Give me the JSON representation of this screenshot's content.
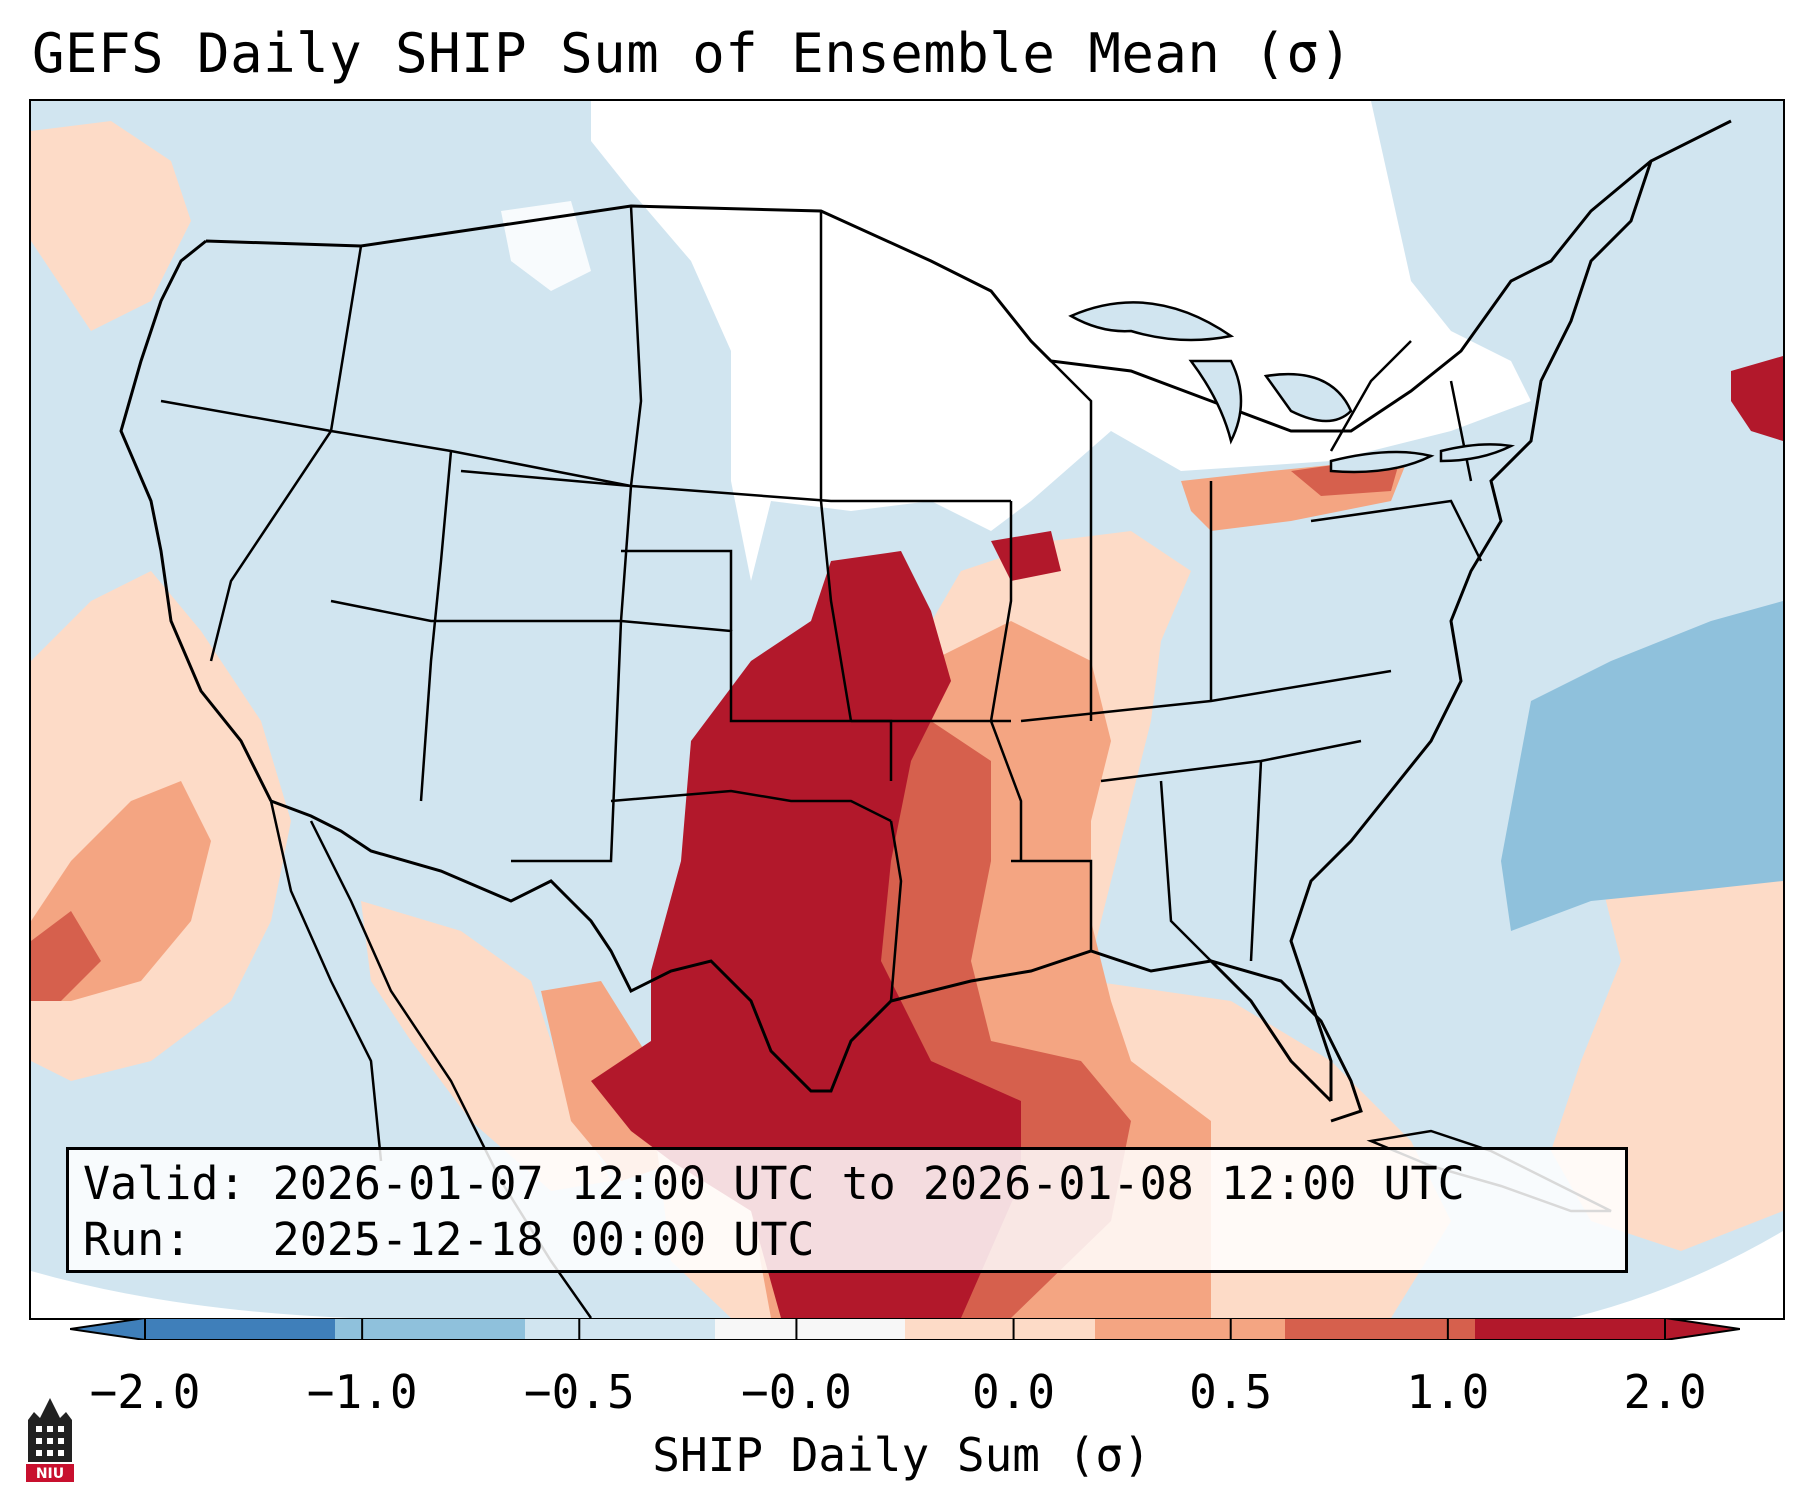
{
  "title": "GEFS Daily SHIP Sum of Ensemble Mean (σ)",
  "info": {
    "valid_label": "Valid:",
    "valid_value": "2026-01-07 12:00 UTC to 2026-01-08 12:00 UTC",
    "run_label": "Run:",
    "run_value": "2025-12-18 00:00 UTC"
  },
  "colorbar": {
    "label": "SHIP Daily Sum (σ)",
    "ticks": [
      "−2.0",
      "−1.0",
      "−0.5",
      "−0.0",
      "0.0",
      "0.5",
      "1.0",
      "2.0"
    ],
    "colors": [
      "#3f7fba",
      "#8fc1dc",
      "#d1e5f0",
      "#f7f7f7",
      "#fddbc7",
      "#f4a582",
      "#d6604d",
      "#b2182b"
    ],
    "extend": "both"
  },
  "logo": {
    "text": "NIU"
  },
  "map": {
    "projection": "Lambert Conformal",
    "region": "Contiguous United States",
    "background_color": "#d1e5f0",
    "neutral_color": "#ffffff"
  }
}
